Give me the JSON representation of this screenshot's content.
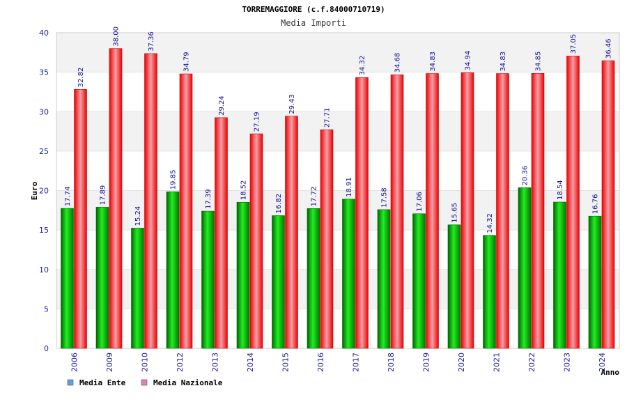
{
  "chart_data": {
    "type": "bar",
    "title": "TORREMAGGIORE (c.f.84000710719)",
    "subtitle": "Media Importi",
    "xlabel": "Anno",
    "ylabel": "Euro",
    "ylim": [
      0,
      40
    ],
    "yticks": [
      0,
      5,
      10,
      15,
      20,
      25,
      30,
      35,
      40
    ],
    "grid": "horizontal-bands",
    "legend_position": "bottom-left",
    "categories": [
      "2006",
      "2009",
      "2010",
      "2012",
      "2013",
      "2014",
      "2015",
      "2016",
      "2017",
      "2018",
      "2019",
      "2020",
      "2021",
      "2022",
      "2023",
      "2024"
    ],
    "series": [
      {
        "name": "Media Ente",
        "legend_color": "#5aa0e6",
        "bar_color": "#00c000",
        "values": [
          17.74,
          17.89,
          15.24,
          19.85,
          17.39,
          18.52,
          16.82,
          17.72,
          18.91,
          17.58,
          17.06,
          15.65,
          14.32,
          20.36,
          18.54,
          16.76
        ],
        "labels": [
          "17.74",
          "17.89",
          "15.24",
          "19.85",
          "17.39",
          "18.52",
          "16.82",
          "17.72",
          "18.91",
          "17.58",
          "17.06",
          "15.65",
          "14.32",
          "20.36",
          "18.54",
          "16.76"
        ]
      },
      {
        "name": "Media Nazionale",
        "legend_color": "#e080b0",
        "bar_color": "#ff0000",
        "values": [
          32.82,
          38.0,
          37.36,
          34.79,
          29.24,
          27.19,
          29.43,
          27.71,
          34.32,
          34.68,
          34.83,
          34.94,
          34.83,
          34.85,
          37.05,
          36.46
        ],
        "labels": [
          "32.82",
          "38.00",
          "37.36",
          "34.79",
          "29.24",
          "27.19",
          "29.43",
          "27.71",
          "34.32",
          "34.68",
          "34.83",
          "34.94",
          "34.83",
          "34.85",
          "37.05",
          "36.46"
        ]
      }
    ]
  }
}
